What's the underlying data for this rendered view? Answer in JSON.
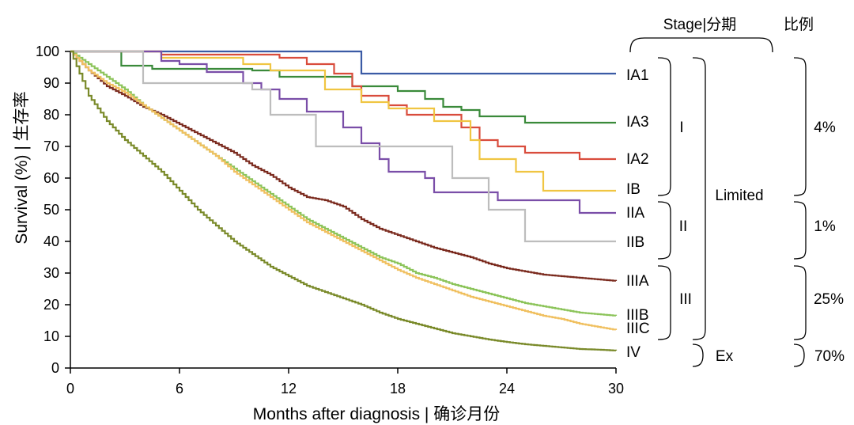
{
  "chart_data": {
    "type": "line",
    "subtype": "kaplan-meier step",
    "xlabel": "Months after diagnosis | 确诊月份",
    "ylabel": "Survival (%) | 生存率",
    "xlim": [
      0,
      30
    ],
    "ylim": [
      0,
      100
    ],
    "x_ticks": [
      0,
      6,
      12,
      18,
      24,
      30
    ],
    "y_ticks": [
      0,
      10,
      20,
      30,
      40,
      50,
      60,
      70,
      80,
      90,
      100
    ],
    "series": [
      {
        "name": "IA1",
        "color": "#3b5ba5",
        "points": [
          [
            0,
            100
          ],
          [
            16,
            100
          ],
          [
            16,
            93
          ],
          [
            30,
            93
          ]
        ]
      },
      {
        "name": "IA3",
        "color": "#3a8a3a",
        "points": [
          [
            0,
            100
          ],
          [
            2.8,
            100
          ],
          [
            2.8,
            95.5
          ],
          [
            4.5,
            95.5
          ],
          [
            4.5,
            94.5
          ],
          [
            10,
            94.5
          ],
          [
            10,
            94
          ],
          [
            11.5,
            94
          ],
          [
            11.5,
            92
          ],
          [
            15.5,
            92
          ],
          [
            15.5,
            89
          ],
          [
            18,
            89
          ],
          [
            18,
            87.5
          ],
          [
            19.5,
            87.5
          ],
          [
            19.5,
            85
          ],
          [
            20.5,
            85
          ],
          [
            20.5,
            82.5
          ],
          [
            21.5,
            82.5
          ],
          [
            21.5,
            81.5
          ],
          [
            22.5,
            81.5
          ],
          [
            22.5,
            79.5
          ],
          [
            25,
            79.5
          ],
          [
            25,
            77.5
          ],
          [
            30,
            77.5
          ]
        ]
      },
      {
        "name": "IA2",
        "color": "#d94c3c",
        "points": [
          [
            0,
            100
          ],
          [
            5,
            100
          ],
          [
            5,
            99
          ],
          [
            11.5,
            99
          ],
          [
            11.5,
            98
          ],
          [
            13,
            98
          ],
          [
            13,
            96
          ],
          [
            14.5,
            96
          ],
          [
            14.5,
            93
          ],
          [
            15.5,
            93
          ],
          [
            15.5,
            89
          ],
          [
            16,
            89
          ],
          [
            16,
            86
          ],
          [
            17.5,
            86
          ],
          [
            17.5,
            83
          ],
          [
            18.5,
            83
          ],
          [
            18.5,
            80
          ],
          [
            21.5,
            80
          ],
          [
            21.5,
            76
          ],
          [
            22.5,
            76
          ],
          [
            22.5,
            72
          ],
          [
            23.5,
            72
          ],
          [
            23.5,
            70
          ],
          [
            25,
            70
          ],
          [
            25,
            68
          ],
          [
            28,
            68
          ],
          [
            28,
            66
          ],
          [
            30,
            66
          ]
        ]
      },
      {
        "name": "IB",
        "color": "#f0c542",
        "points": [
          [
            0,
            100
          ],
          [
            5,
            100
          ],
          [
            5,
            98
          ],
          [
            9.5,
            98
          ],
          [
            9.5,
            96
          ],
          [
            11,
            96
          ],
          [
            11,
            94
          ],
          [
            14,
            94
          ],
          [
            14,
            88
          ],
          [
            16,
            88
          ],
          [
            16,
            84
          ],
          [
            17.5,
            84
          ],
          [
            17.5,
            82
          ],
          [
            20,
            82
          ],
          [
            20,
            78
          ],
          [
            22,
            78
          ],
          [
            22,
            72
          ],
          [
            22.5,
            72
          ],
          [
            22.5,
            66
          ],
          [
            24.5,
            66
          ],
          [
            24.5,
            62
          ],
          [
            26,
            62
          ],
          [
            26,
            56
          ],
          [
            30,
            56
          ]
        ]
      },
      {
        "name": "IIA",
        "color": "#7a4ea8",
        "points": [
          [
            0,
            100
          ],
          [
            5,
            100
          ],
          [
            5,
            97
          ],
          [
            6,
            97
          ],
          [
            6,
            96
          ],
          [
            7.5,
            96
          ],
          [
            7.5,
            93.5
          ],
          [
            9.5,
            93.5
          ],
          [
            9.5,
            90
          ],
          [
            10.5,
            90
          ],
          [
            10.5,
            88
          ],
          [
            11.5,
            88
          ],
          [
            11.5,
            85
          ],
          [
            13,
            85
          ],
          [
            13,
            81
          ],
          [
            15,
            81
          ],
          [
            15,
            76
          ],
          [
            16,
            76
          ],
          [
            16,
            71
          ],
          [
            17,
            71
          ],
          [
            17,
            66
          ],
          [
            17.5,
            66
          ],
          [
            17.5,
            62
          ],
          [
            19.5,
            62
          ],
          [
            19.5,
            60
          ],
          [
            20,
            60
          ],
          [
            20,
            55.5
          ],
          [
            23.5,
            55.5
          ],
          [
            23.5,
            53
          ],
          [
            28,
            53
          ],
          [
            28,
            49
          ],
          [
            30,
            49
          ]
        ]
      },
      {
        "name": "IIB",
        "color": "#bdbdbd",
        "points": [
          [
            0,
            100
          ],
          [
            4,
            100
          ],
          [
            4,
            90
          ],
          [
            10,
            90
          ],
          [
            10,
            88
          ],
          [
            11,
            88
          ],
          [
            11,
            80
          ],
          [
            13.5,
            80
          ],
          [
            13.5,
            70
          ],
          [
            21,
            70
          ],
          [
            21,
            60
          ],
          [
            23,
            60
          ],
          [
            23,
            50
          ],
          [
            25,
            50
          ],
          [
            25,
            40
          ],
          [
            30,
            40
          ]
        ]
      },
      {
        "name": "IIIA",
        "color": "#7b2b1f",
        "points": [
          [
            0,
            100
          ],
          [
            1,
            94
          ],
          [
            2,
            89
          ],
          [
            3,
            86
          ],
          [
            4,
            82.5
          ],
          [
            5,
            80
          ],
          [
            6,
            77
          ],
          [
            7,
            74
          ],
          [
            8,
            71
          ],
          [
            9,
            68
          ],
          [
            10,
            64
          ],
          [
            11,
            61
          ],
          [
            12,
            57
          ],
          [
            13,
            54
          ],
          [
            14,
            53
          ],
          [
            15,
            51
          ],
          [
            16,
            47
          ],
          [
            17,
            44
          ],
          [
            18,
            42
          ],
          [
            19,
            40
          ],
          [
            20,
            38
          ],
          [
            21,
            36.5
          ],
          [
            22,
            35
          ],
          [
            23,
            33
          ],
          [
            24,
            31.5
          ],
          [
            25,
            30.5
          ],
          [
            26,
            29.5
          ],
          [
            27,
            29
          ],
          [
            28,
            28.5
          ],
          [
            29,
            28
          ],
          [
            30,
            27.5
          ]
        ]
      },
      {
        "name": "IIIB",
        "color": "#8cc45a",
        "points": [
          [
            0,
            100
          ],
          [
            1,
            96
          ],
          [
            2,
            92
          ],
          [
            3,
            88
          ],
          [
            4,
            83
          ],
          [
            5,
            79
          ],
          [
            6,
            75
          ],
          [
            7,
            71
          ],
          [
            8,
            67
          ],
          [
            9,
            63
          ],
          [
            10,
            59
          ],
          [
            11,
            55
          ],
          [
            12,
            51
          ],
          [
            13,
            47
          ],
          [
            14,
            44
          ],
          [
            15,
            41
          ],
          [
            16,
            38
          ],
          [
            17,
            35
          ],
          [
            18,
            33
          ],
          [
            19,
            30
          ],
          [
            20,
            28.5
          ],
          [
            21,
            26.5
          ],
          [
            22,
            25
          ],
          [
            23,
            23.5
          ],
          [
            24,
            22
          ],
          [
            25,
            20.5
          ],
          [
            26,
            19.5
          ],
          [
            27,
            18.5
          ],
          [
            28,
            17.5
          ],
          [
            29,
            17
          ],
          [
            30,
            16.5
          ]
        ]
      },
      {
        "name": "IIIC",
        "color": "#f0c060",
        "points": [
          [
            0,
            100
          ],
          [
            1,
            94
          ],
          [
            2,
            90
          ],
          [
            3,
            87
          ],
          [
            4,
            83
          ],
          [
            5,
            79
          ],
          [
            6,
            75
          ],
          [
            7,
            71
          ],
          [
            8,
            67
          ],
          [
            9,
            62
          ],
          [
            10,
            58
          ],
          [
            11,
            54
          ],
          [
            12,
            50
          ],
          [
            13,
            46
          ],
          [
            14,
            43
          ],
          [
            15,
            40
          ],
          [
            16,
            37
          ],
          [
            17,
            34
          ],
          [
            18,
            31
          ],
          [
            19,
            28.5
          ],
          [
            20,
            26.5
          ],
          [
            21,
            24.5
          ],
          [
            22,
            22.5
          ],
          [
            23,
            21
          ],
          [
            24,
            19.5
          ],
          [
            25,
            18
          ],
          [
            26,
            16.5
          ],
          [
            27,
            15.5
          ],
          [
            28,
            14
          ],
          [
            29,
            13
          ],
          [
            30,
            12
          ]
        ]
      },
      {
        "name": "IV",
        "color": "#7a8a2a",
        "points": [
          [
            0,
            100
          ],
          [
            1,
            86
          ],
          [
            2,
            78
          ],
          [
            3,
            72
          ],
          [
            4,
            67
          ],
          [
            5,
            62
          ],
          [
            6,
            56
          ],
          [
            7,
            50
          ],
          [
            8,
            45
          ],
          [
            9,
            40
          ],
          [
            10,
            36
          ],
          [
            11,
            32
          ],
          [
            12,
            29
          ],
          [
            13,
            26
          ],
          [
            14,
            24
          ],
          [
            15,
            22
          ],
          [
            16,
            20
          ],
          [
            17,
            17.5
          ],
          [
            18,
            15.5
          ],
          [
            19,
            14
          ],
          [
            20,
            12.5
          ],
          [
            21,
            11
          ],
          [
            22,
            10
          ],
          [
            23,
            9
          ],
          [
            24,
            8.2
          ],
          [
            25,
            7.5
          ],
          [
            26,
            7
          ],
          [
            27,
            6.5
          ],
          [
            28,
            6
          ],
          [
            29,
            5.8
          ],
          [
            30,
            5.5
          ]
        ]
      }
    ]
  },
  "legend": {
    "stage_header": "Stage|分期",
    "ratio_header": "比例",
    "groups": {
      "I": "I",
      "II": "II",
      "III": "III",
      "limited": "Limited",
      "ex": "Ex"
    },
    "ratios": {
      "limited_I": "4%",
      "limited_II": "1%",
      "limited_III": "25%",
      "ex_IV": "70%"
    }
  }
}
